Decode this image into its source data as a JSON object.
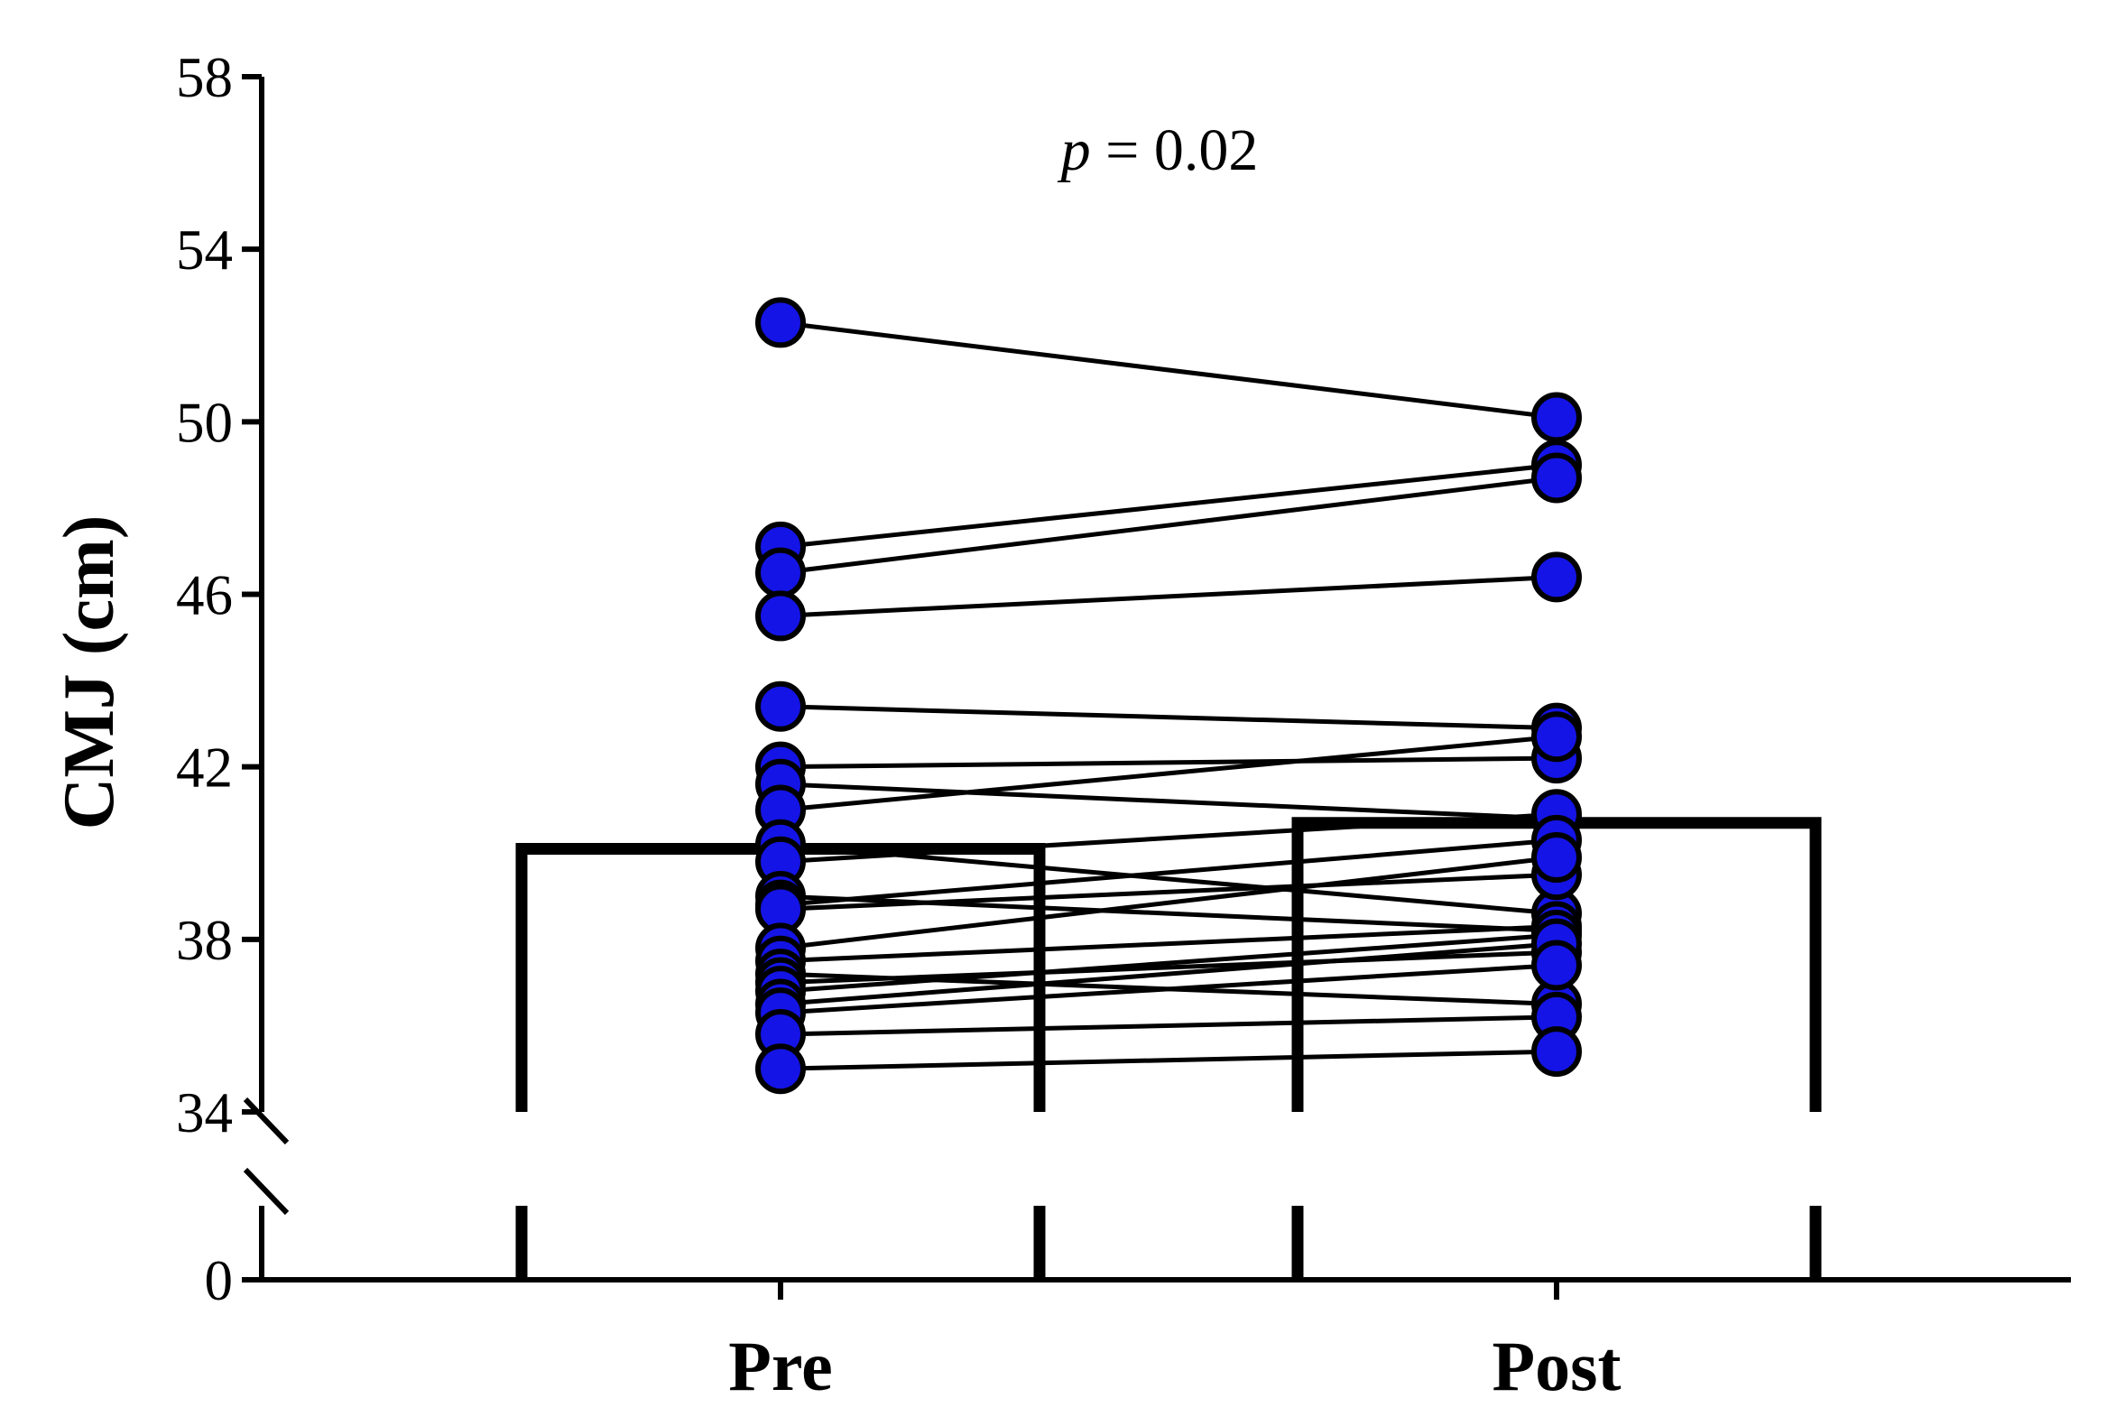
{
  "chart_data": {
    "type": "bar",
    "ylabel": "CMJ (cm)",
    "categories": [
      "Pre",
      "Post"
    ],
    "bar_means": [
      40.1,
      40.7
    ],
    "y_axis": {
      "lower_segment": [
        0,
        2
      ],
      "upper_segment": [
        34,
        58
      ],
      "ticks": [
        0,
        34,
        38,
        42,
        46,
        50,
        54,
        58
      ],
      "broken": true
    },
    "annotation": {
      "prefix": "p",
      "text": " = 0.02"
    },
    "series": [
      {
        "values": [
          52.3,
          50.1
        ]
      },
      {
        "values": [
          47.1,
          49.0
        ]
      },
      {
        "values": [
          46.5,
          48.7
        ]
      },
      {
        "values": [
          45.5,
          46.4
        ]
      },
      {
        "values": [
          43.4,
          42.9
        ]
      },
      {
        "values": [
          42.0,
          42.2
        ]
      },
      {
        "values": [
          41.6,
          40.8
        ]
      },
      {
        "values": [
          41.0,
          42.7
        ]
      },
      {
        "values": [
          40.2,
          38.6
        ]
      },
      {
        "values": [
          39.8,
          40.9
        ]
      },
      {
        "values": [
          39.0,
          38.2
        ]
      },
      {
        "values": [
          38.8,
          40.3
        ]
      },
      {
        "values": [
          38.7,
          39.5
        ]
      },
      {
        "values": [
          37.8,
          39.9
        ]
      },
      {
        "values": [
          37.5,
          38.3
        ]
      },
      {
        "values": [
          37.2,
          36.5
        ]
      },
      {
        "values": [
          37.0,
          37.7
        ]
      },
      {
        "values": [
          36.8,
          38.1
        ]
      },
      {
        "values": [
          36.5,
          37.9
        ]
      },
      {
        "values": [
          36.3,
          37.4
        ]
      },
      {
        "values": [
          35.8,
          36.2
        ]
      },
      {
        "values": [
          35.0,
          35.4
        ]
      }
    ],
    "colors": {
      "marker": "#1414e6",
      "line": "#000000"
    }
  }
}
